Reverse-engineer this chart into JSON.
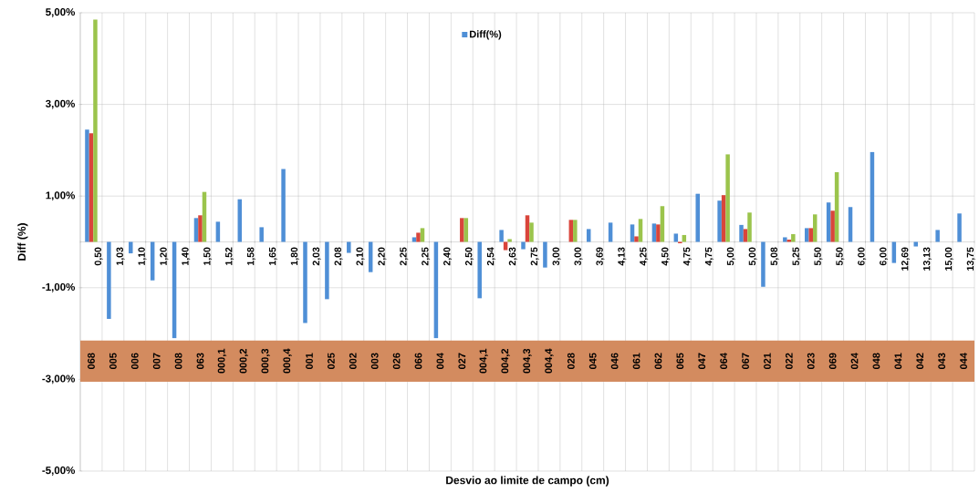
{
  "chart_data": {
    "type": "bar",
    "xlabel": "Desvio ao limite de campo (cm)",
    "ylabel": "Diff (%)",
    "categories": [
      "0,50",
      "1,03",
      "1,10",
      "1,20",
      "1,40",
      "1,50",
      "1,52",
      "1,58",
      "1,65",
      "1,80",
      "2,03",
      "2,08",
      "2,10",
      "2,20",
      "2,25",
      "2,25",
      "2,40",
      "2,50",
      "2,54",
      "2,63",
      "2,75",
      "3,00",
      "3,00",
      "3,69",
      "4,13",
      "4,25",
      "4,50",
      "4,75",
      "4,75",
      "5,00",
      "5,00",
      "5,08",
      "5,25",
      "5,50",
      "5,50",
      "6,00",
      "6,00",
      "12,69",
      "13,13",
      "15,00",
      "13,75"
    ],
    "series": [
      {
        "name": "Diff(%)",
        "color": "#4f8fd6",
        "values": [
          2.45,
          -1.68,
          -0.25,
          -0.84,
          -2.1,
          0.52,
          0.44,
          0.93,
          0.32,
          1.59,
          -1.77,
          -1.25,
          -0.24,
          -0.66,
          null,
          0.1,
          -2.1,
          null,
          -1.23,
          0.26,
          -0.16,
          -0.56,
          null,
          0.28,
          0.42,
          0.38,
          0.4,
          0.18,
          1.05,
          0.9,
          0.37,
          -0.98,
          0.1,
          0.3,
          0.86,
          0.76,
          1.96,
          -0.46,
          -0.1,
          0.26,
          0.62
        ]
      },
      {
        "color": "#d9453b",
        "values": [
          2.37,
          null,
          null,
          null,
          null,
          0.58,
          null,
          null,
          null,
          null,
          null,
          null,
          null,
          null,
          null,
          0.2,
          null,
          0.52,
          null,
          -0.18,
          0.58,
          null,
          0.48,
          null,
          null,
          0.12,
          0.38,
          -0.03,
          null,
          1.02,
          0.28,
          null,
          0.05,
          0.3,
          0.68,
          null,
          null,
          null,
          null,
          null,
          null
        ]
      },
      {
        "color": "#9bc44c",
        "values": [
          4.85,
          null,
          null,
          null,
          null,
          1.09,
          null,
          null,
          null,
          null,
          null,
          null,
          null,
          null,
          null,
          0.3,
          null,
          0.52,
          null,
          0.06,
          0.42,
          null,
          0.48,
          null,
          null,
          0.5,
          0.78,
          0.15,
          null,
          1.91,
          0.64,
          null,
          0.17,
          0.6,
          1.52,
          null,
          null,
          null,
          null,
          null,
          null
        ]
      }
    ],
    "ylim": [
      -5,
      5
    ],
    "yticks": [
      {
        "value": -5,
        "label": "-5,00%"
      },
      {
        "value": -3,
        "label": "-3,00%"
      },
      {
        "value": -1,
        "label": "-1,00%"
      },
      {
        "value": 1,
        "label": "1,00%"
      },
      {
        "value": 3,
        "label": "3,00%"
      },
      {
        "value": 5,
        "label": "5,00%"
      }
    ],
    "grid": true,
    "legend": "top",
    "bands": [
      {
        "axis": "y",
        "from": -3.05,
        "to": -2.15,
        "color": "#d38b5f"
      }
    ],
    "annotations": [
      "068",
      "005",
      "006",
      "007",
      "008",
      "063",
      "000,1",
      "000,2",
      "000,3",
      "000,4",
      "001",
      "025",
      "002",
      "003",
      "026",
      "066",
      "004",
      "027",
      "004,1",
      "004,2",
      "004,3",
      "004,4",
      "028",
      "045",
      "046",
      "061",
      "062",
      "065",
      "047",
      "064",
      "067",
      "021",
      "022",
      "023",
      "069",
      "024",
      "048",
      "041",
      "042",
      "043",
      "044"
    ]
  }
}
